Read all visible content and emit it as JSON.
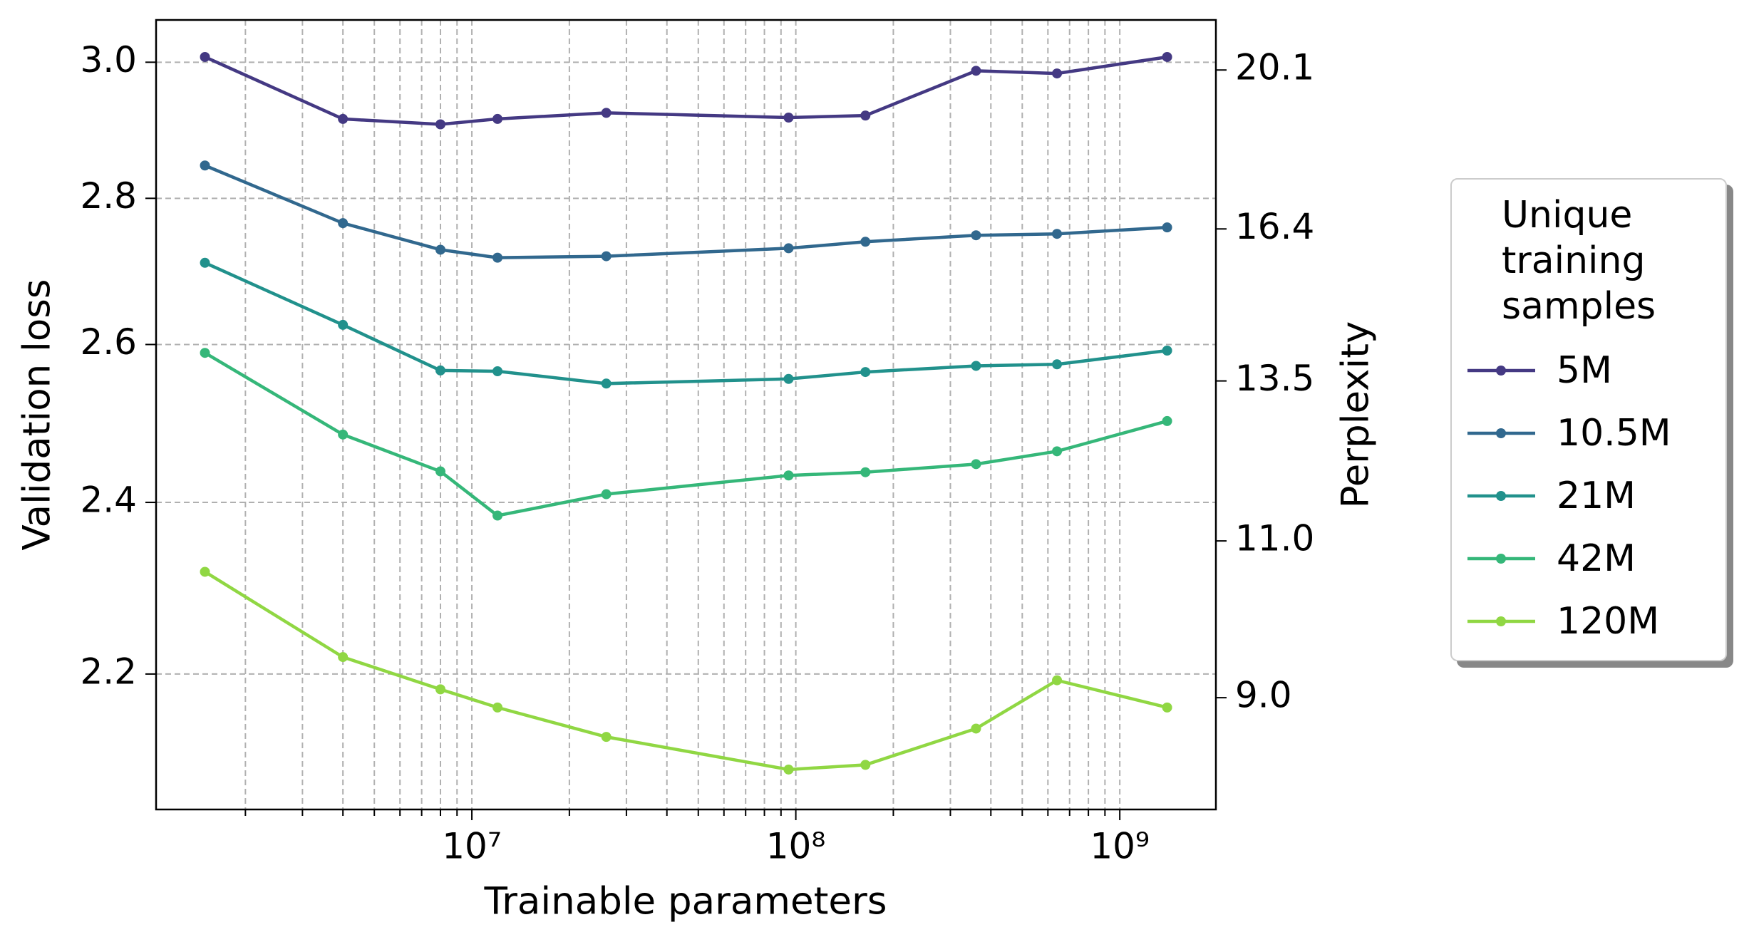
{
  "chart_data": {
    "type": "line",
    "x_label": "Trainable parameters",
    "y_label": "Validation loss",
    "y2_label": "Perplexity",
    "legend_title": "Unique\ntraining\nsamples",
    "legend": "right",
    "grid": true,
    "xscale": "log",
    "yscale": "log",
    "y2scale": "log",
    "x": [
      1500000,
      4000000,
      8000000,
      12000000,
      26000000,
      95000000,
      164000000,
      360000000,
      640000000,
      1400000000
    ],
    "xlim": [
      1060000,
      1980000000
    ],
    "xticks": [
      {
        "value": 10000000,
        "label": "10⁷"
      },
      {
        "value": 100000000,
        "label": "10⁸"
      },
      {
        "value": 1000000000,
        "label": "10⁹"
      }
    ],
    "ylim": [
      2.054,
      3.065
    ],
    "yticks": [
      {
        "value": 2.2,
        "label": "2.2"
      },
      {
        "value": 2.4,
        "label": "2.4"
      },
      {
        "value": 2.6,
        "label": "2.6"
      },
      {
        "value": 2.8,
        "label": "2.8"
      },
      {
        "value": 3.0,
        "label": "3.0"
      }
    ],
    "y2lim": [
      7.8,
      21.43
    ],
    "y2ticks": [
      {
        "value": 9.0,
        "label": "9.0"
      },
      {
        "value": 11.0,
        "label": "11.0"
      },
      13.5,
      16.4,
      20.1
    ],
    "series": [
      {
        "name": "5M",
        "color": "#443983",
        "values": [
          3.008,
          2.915,
          2.907,
          2.915,
          2.924,
          2.917,
          2.92,
          2.987,
          2.983,
          3.008
        ]
      },
      {
        "name": "10.5M",
        "color": "#31688e",
        "values": [
          2.847,
          2.765,
          2.728,
          2.717,
          2.719,
          2.73,
          2.739,
          2.748,
          2.75,
          2.759
        ]
      },
      {
        "name": "21M",
        "color": "#21918c",
        "values": [
          2.71,
          2.626,
          2.566,
          2.565,
          2.549,
          2.555,
          2.564,
          2.572,
          2.574,
          2.592
        ]
      },
      {
        "name": "42M",
        "color": "#35b779",
        "values": [
          2.589,
          2.484,
          2.438,
          2.384,
          2.41,
          2.433,
          2.437,
          2.447,
          2.463,
          2.501
        ]
      },
      {
        "name": "120M",
        "color": "#90d743",
        "values": [
          2.317,
          2.219,
          2.183,
          2.163,
          2.131,
          2.096,
          2.101,
          2.14,
          2.193,
          2.163
        ]
      }
    ]
  }
}
